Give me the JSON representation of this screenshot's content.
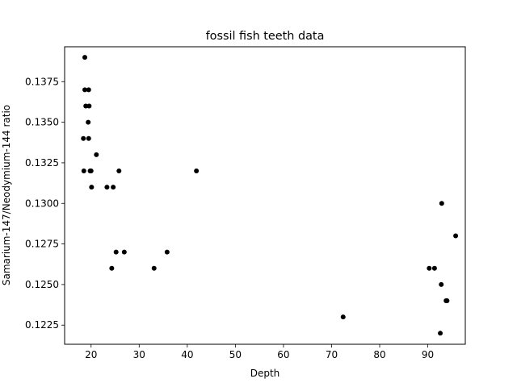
{
  "chart_data": {
    "type": "scatter",
    "title": "fossil fish teeth data",
    "xlabel": "Depth",
    "ylabel": "Samarium-147/Neodymium-144 ratio",
    "xlim": [
      14.5,
      97.8
    ],
    "ylim": [
      0.12132,
      0.13965
    ],
    "xticks": [
      20,
      30,
      40,
      50,
      60,
      70,
      80,
      90
    ],
    "xtick_labels": [
      "20",
      "30",
      "40",
      "50",
      "60",
      "70",
      "80",
      "90"
    ],
    "yticks": [
      0.1225,
      0.125,
      0.1275,
      0.13,
      0.1325,
      0.135,
      0.1375
    ],
    "ytick_labels": [
      "0.1225",
      "0.1250",
      "0.1275",
      "0.1300",
      "0.1325",
      "0.1350",
      "0.1375"
    ],
    "grid": false,
    "marker_color": "#000000",
    "points": [
      {
        "x": 18.7,
        "y": 0.139
      },
      {
        "x": 18.7,
        "y": 0.137
      },
      {
        "x": 19.5,
        "y": 0.137
      },
      {
        "x": 18.9,
        "y": 0.136
      },
      {
        "x": 19.6,
        "y": 0.136
      },
      {
        "x": 19.4,
        "y": 0.135
      },
      {
        "x": 18.4,
        "y": 0.134
      },
      {
        "x": 19.5,
        "y": 0.134
      },
      {
        "x": 21.1,
        "y": 0.133
      },
      {
        "x": 18.5,
        "y": 0.132
      },
      {
        "x": 19.8,
        "y": 0.132
      },
      {
        "x": 20.0,
        "y": 0.132
      },
      {
        "x": 25.8,
        "y": 0.132
      },
      {
        "x": 41.9,
        "y": 0.132
      },
      {
        "x": 20.1,
        "y": 0.131
      },
      {
        "x": 23.3,
        "y": 0.131
      },
      {
        "x": 24.6,
        "y": 0.131
      },
      {
        "x": 92.9,
        "y": 0.13
      },
      {
        "x": 95.8,
        "y": 0.128
      },
      {
        "x": 25.2,
        "y": 0.127
      },
      {
        "x": 26.9,
        "y": 0.127
      },
      {
        "x": 35.8,
        "y": 0.127
      },
      {
        "x": 24.3,
        "y": 0.126
      },
      {
        "x": 33.1,
        "y": 0.126
      },
      {
        "x": 90.3,
        "y": 0.126
      },
      {
        "x": 91.4,
        "y": 0.126
      },
      {
        "x": 92.8,
        "y": 0.125
      },
      {
        "x": 93.8,
        "y": 0.124
      },
      {
        "x": 94.0,
        "y": 0.124
      },
      {
        "x": 72.4,
        "y": 0.123
      },
      {
        "x": 92.6,
        "y": 0.122
      }
    ]
  }
}
